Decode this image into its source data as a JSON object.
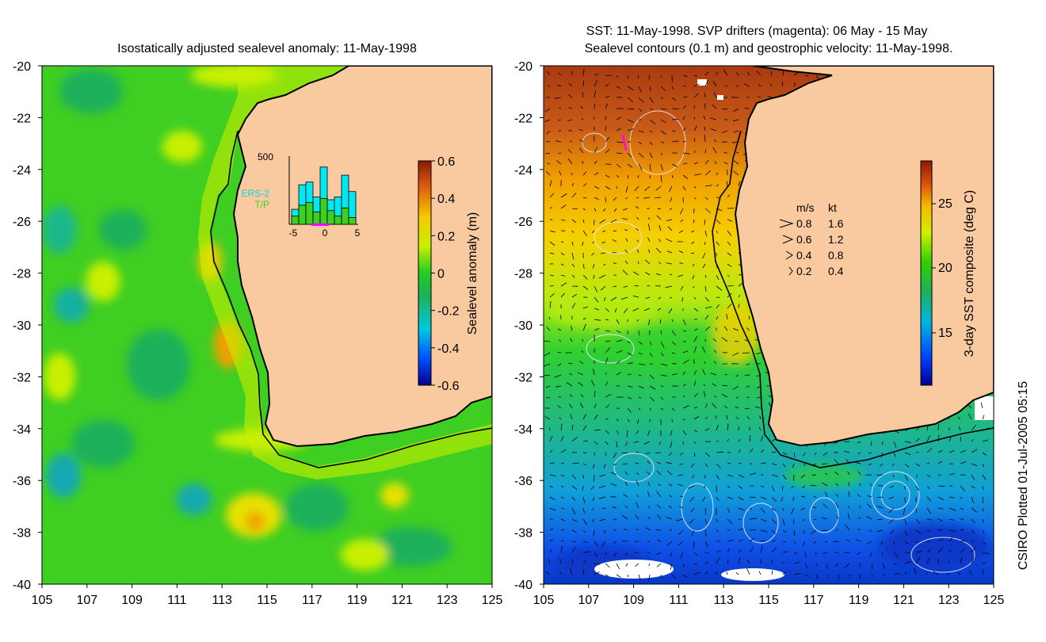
{
  "left_panel": {
    "title": "Isostatically adjusted sealevel anomaly: 11-May-1998",
    "colorbar": {
      "label": "Sealevel anomaly (m)",
      "ticks": [
        "0.6",
        "0.4",
        "0.2",
        "0",
        "-0.2",
        "-0.4",
        "-0.6"
      ],
      "range": [
        -0.6,
        0.6
      ]
    },
    "histogram": {
      "ymax_label": "500",
      "xticks": [
        "-5",
        "0",
        "5"
      ],
      "legend_ers2": "ERS-2",
      "legend_tp": "T/P",
      "ers2_counts": [
        110,
        290,
        310,
        200,
        420,
        180,
        200,
        360,
        240
      ],
      "tp_counts": [
        60,
        140,
        160,
        90,
        190,
        100,
        60,
        120,
        50
      ],
      "ymax": 500
    }
  },
  "right_panel": {
    "title_line1": "SST: 11-May-1998. SVP drifters (magenta): 06 May - 15 May",
    "title_line2": "Sealevel contours (0.1 m) and geostrophic velocity: 11-May-1998.",
    "colorbar": {
      "label": "3-day SST composite (deg C)",
      "ticks": [
        "25",
        "20",
        "15"
      ]
    },
    "velocity_legend": {
      "header_ms": "m/s",
      "header_kt": "kt",
      "rows": [
        {
          "ms": "0.8",
          "kt": "1.6"
        },
        {
          "ms": "0.6",
          "kt": "1.2"
        },
        {
          "ms": "0.4",
          "kt": "0.8"
        },
        {
          "ms": "0.2",
          "kt": "0.4"
        }
      ]
    }
  },
  "axes": {
    "lat_ticks": [
      "-20",
      "-22",
      "-24",
      "-26",
      "-28",
      "-30",
      "-32",
      "-34",
      "-36",
      "-38",
      "-40"
    ],
    "lon_ticks": [
      "105",
      "107",
      "109",
      "111",
      "113",
      "115",
      "117",
      "119",
      "121",
      "123",
      "125"
    ]
  },
  "credit": "CSIRO Plotted 01-Jul-2005 05:15",
  "colors": {
    "land": "#f9c9a0",
    "coast": "#000000",
    "ocean_default": "#3fce22"
  }
}
